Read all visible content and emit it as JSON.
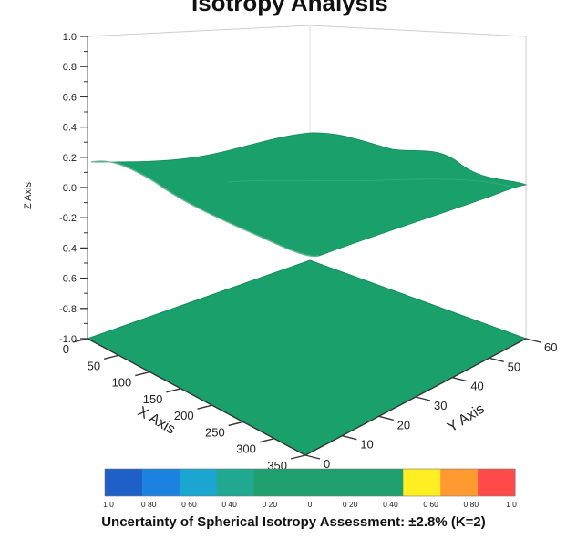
{
  "title_fragment": "Isotropy Analysis",
  "caption": "Uncertainty of Spherical Isotropy Assessment: ±2.8% (K=2)",
  "chart_data": {
    "type": "surface3d",
    "zlabel": "Z Axis",
    "xlabel": "X Axis",
    "ylabel": "Y Axis",
    "z_ticks": [
      "1.0",
      "0.8",
      "0.6",
      "0.4",
      "0.2",
      "0.0",
      "-0.2",
      "-0.4",
      "-0.6",
      "-0.8",
      "-1.0"
    ],
    "z_tick_values": [
      1.0,
      0.8,
      0.6,
      0.4,
      0.2,
      0.0,
      -0.2,
      -0.4,
      -0.6,
      -0.8,
      -1.0
    ],
    "x_ticks": [
      "0",
      "50",
      "100",
      "150",
      "200",
      "250",
      "300",
      "350"
    ],
    "x_tick_values": [
      0,
      50,
      100,
      150,
      200,
      250,
      300,
      350
    ],
    "y_ticks": [
      "0",
      "10",
      "20",
      "30",
      "40",
      "50",
      "60"
    ],
    "y_tick_values": [
      0,
      10,
      20,
      30,
      40,
      50,
      60
    ],
    "zlim": [
      -1.0,
      1.0
    ],
    "xlim": [
      0,
      350
    ],
    "ylim": [
      0,
      60
    ],
    "surfaces": [
      {
        "name": "upper",
        "z_level": 0.15,
        "color": "#1aa06a"
      },
      {
        "name": "lower",
        "z_level": -1.0,
        "color": "#1aa06a"
      }
    ],
    "colorbar": {
      "labels": [
        "1 0",
        "0 80",
        "0 60",
        "0 40",
        "0 20",
        "0",
        "0 20",
        "0 40",
        "0 60",
        "0 80",
        "1 0"
      ],
      "colors": [
        "#1f5fc8",
        "#1b82e0",
        "#1aa6d0",
        "#20a890",
        "#1f9e6e",
        "#1f9e6e",
        "#1f9e6e",
        "#1f9e6e",
        "#ffee22",
        "#ff9a30",
        "#ff4a4a"
      ]
    }
  }
}
